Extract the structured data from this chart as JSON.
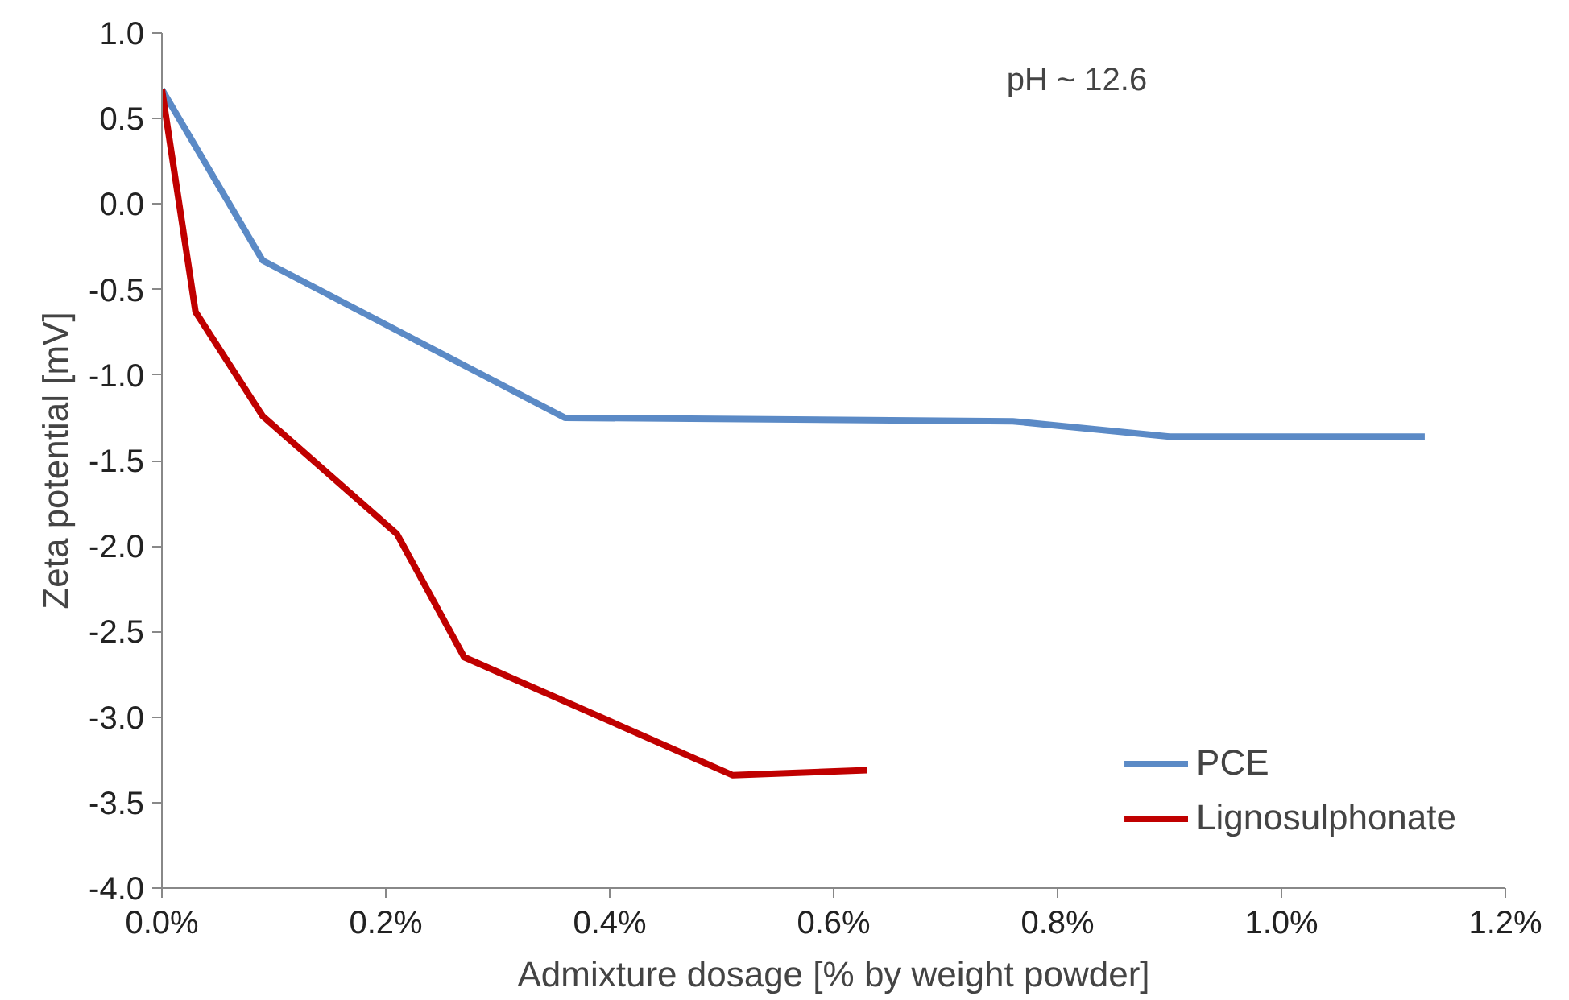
{
  "chart_data": {
    "type": "line",
    "xlabel": "Admixture dosage [% by weight powder]",
    "ylabel": "Zeta potential [mV]",
    "annotations": [
      "pH ~ 12.6"
    ],
    "series": [
      {
        "name": "PCE",
        "color": "#5b8ac6",
        "x": [
          0,
          0.09,
          0.36,
          0.76,
          0.9,
          1.128
        ],
        "values": [
          0.67,
          -0.33,
          -1.25,
          -1.27,
          -1.36,
          -1.36
        ]
      },
      {
        "name": "Lignosulphonate",
        "color": "#c00000",
        "x": [
          0,
          0.03,
          0.09,
          0.21,
          0.27,
          0.51,
          0.63
        ],
        "values": [
          0.67,
          -0.63,
          -1.24,
          -1.93,
          -2.65,
          -3.34,
          -3.31
        ]
      }
    ],
    "xlim": [
      0,
      1.2
    ],
    "ylim": [
      -4,
      1
    ],
    "xticks": [
      {
        "value": 0,
        "label": "0.0%"
      },
      {
        "value": 0.2,
        "label": "0.2%"
      },
      {
        "value": 0.4,
        "label": "0.4%"
      },
      {
        "value": 0.6,
        "label": "0.6%"
      },
      {
        "value": 0.8,
        "label": "0.8%"
      },
      {
        "value": 1.0,
        "label": "1.0%"
      },
      {
        "value": 1.2,
        "label": "1.2%"
      }
    ],
    "yticks": [
      {
        "value": 1,
        "label": "1.0"
      },
      {
        "value": 0.5,
        "label": "0.5"
      },
      {
        "value": 0,
        "label": "0.0"
      },
      {
        "value": -0.5,
        "label": "-0.5"
      },
      {
        "value": -1,
        "label": "-1.0"
      },
      {
        "value": -1.5,
        "label": "-1.5"
      },
      {
        "value": -2,
        "label": "-2.0"
      },
      {
        "value": -2.5,
        "label": "-2.5"
      },
      {
        "value": -3,
        "label": "-3.0"
      },
      {
        "value": -3.5,
        "label": "-3.5"
      },
      {
        "value": -4,
        "label": "-4.0"
      }
    ],
    "grid": false,
    "legend": "bottom right",
    "marker": "none",
    "line_style": "solid"
  }
}
